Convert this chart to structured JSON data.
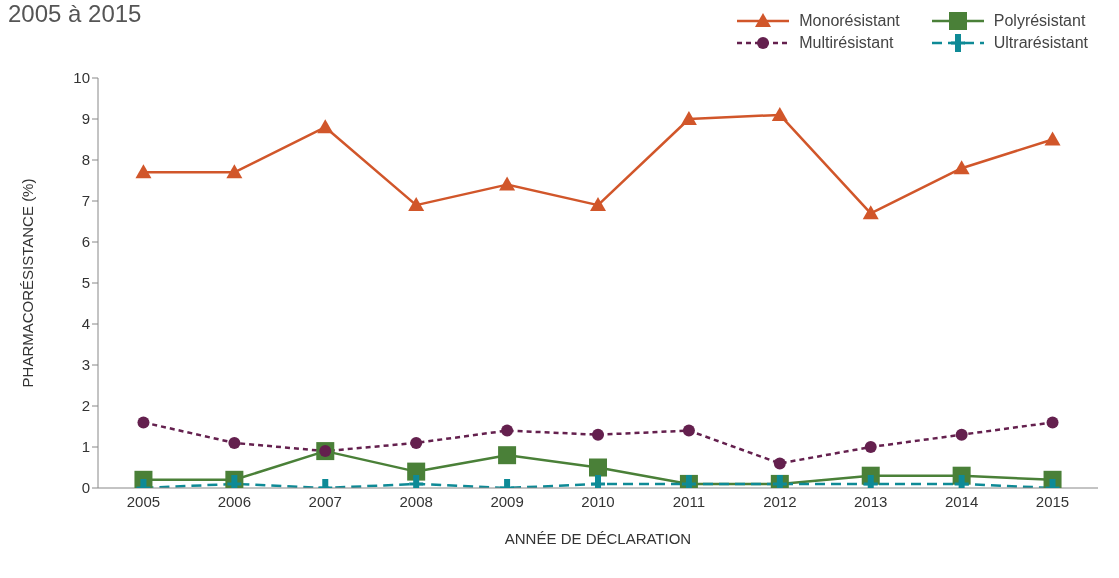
{
  "chart_data": {
    "type": "line",
    "title": "2005 à 2015",
    "xlabel": "ANNÉE DE DÉCLARATION",
    "ylabel": "PHARMACORÉSISTANCE (%)",
    "categories": [
      "2005",
      "2006",
      "2007",
      "2008",
      "2009",
      "2010",
      "2011",
      "2012",
      "2013",
      "2014",
      "2015"
    ],
    "ylim": [
      0,
      10
    ],
    "yticks": [
      0,
      1,
      2,
      3,
      4,
      5,
      6,
      7,
      8,
      9,
      10
    ],
    "grid": false,
    "legend": "top right",
    "series": [
      {
        "name": "Monorésistant",
        "color": "#d1562a",
        "marker": "triangle",
        "line_style": "solid",
        "values": [
          7.7,
          7.7,
          8.8,
          6.9,
          7.4,
          6.9,
          9.0,
          9.1,
          6.7,
          7.8,
          8.5
        ]
      },
      {
        "name": "Polyrésistant",
        "color": "#4a8038",
        "marker": "square",
        "line_style": "solid",
        "values": [
          0.2,
          0.2,
          0.9,
          0.4,
          0.8,
          0.5,
          0.1,
          0.1,
          0.3,
          0.3,
          0.2
        ]
      },
      {
        "name": "Multirésistant",
        "color": "#64204e",
        "marker": "circle",
        "line_style": "dotted",
        "values": [
          1.6,
          1.1,
          0.9,
          1.1,
          1.4,
          1.3,
          1.4,
          0.6,
          1.0,
          1.3,
          1.6
        ]
      },
      {
        "name": "Ultrarésistant",
        "color": "#0e8a96",
        "marker": "cross",
        "line_style": "dashed",
        "values": [
          0,
          0.1,
          0,
          0.1,
          0,
          0.1,
          0.1,
          0.1,
          0.1,
          0.1,
          0
        ]
      }
    ]
  }
}
